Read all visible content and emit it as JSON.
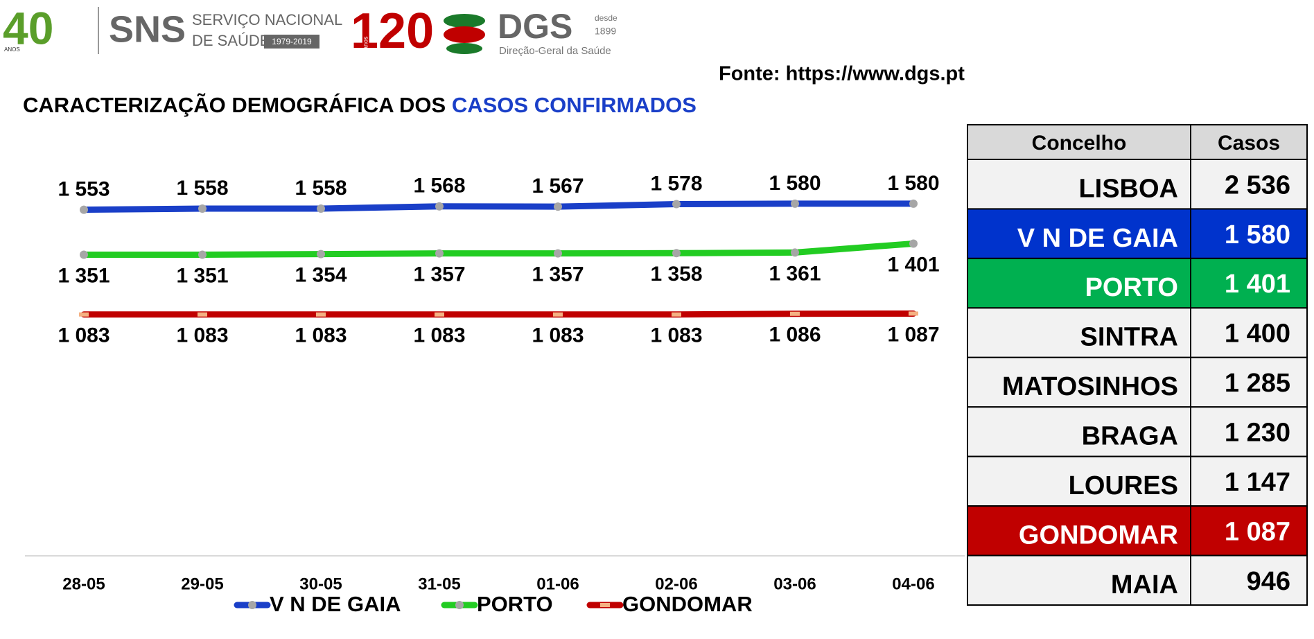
{
  "header": {
    "sns_years": "40",
    "sns_years_unit": "ANOS",
    "sns": "SNS",
    "sns_line1": "SERVIÇO NACIONAL",
    "sns_line2": "DE SAÚDE",
    "sns_period": "1979-2019",
    "dgs_years": "120",
    "dgs_years_unit": "anos",
    "dgs": "DGS",
    "dgs_since": "desde",
    "dgs_year": "1899",
    "dgs_name": "Direção-Geral da Saúde"
  },
  "source": "Fonte: https://www.dgs.pt",
  "chart_data": {
    "type": "line",
    "title": "CARACTERIZAÇÃO DEMOGRÁFICA DOS ",
    "title_highlight": "CASOS CONFIRMADOS",
    "categories": [
      "28-05",
      "29-05",
      "30-05",
      "31-05",
      "01-06",
      "02-06",
      "03-06",
      "04-06"
    ],
    "ylim": [
      0,
      1900
    ],
    "series": [
      {
        "name": "V N DE GAIA",
        "color": "#1a3fc8",
        "marker": "circle",
        "label_position": "above",
        "values": [
          1553,
          1558,
          1558,
          1568,
          1567,
          1578,
          1580,
          1580
        ],
        "value_labels": [
          "1 553",
          "1 558",
          "1 558",
          "1 568",
          "1 567",
          "1 578",
          "1 580",
          "1 580"
        ]
      },
      {
        "name": "PORTO",
        "color": "#22cc22",
        "marker": "circle",
        "label_position": "below",
        "values": [
          1351,
          1351,
          1354,
          1357,
          1357,
          1358,
          1361,
          1401
        ],
        "value_labels": [
          "1 351",
          "1 351",
          "1 354",
          "1 357",
          "1 357",
          "1 358",
          "1 361",
          "1 401"
        ]
      },
      {
        "name": "GONDOMAR",
        "color": "#c00000",
        "marker": "square",
        "label_position": "below",
        "values": [
          1083,
          1083,
          1083,
          1083,
          1083,
          1083,
          1086,
          1087
        ],
        "value_labels": [
          "1 083",
          "1 083",
          "1 083",
          "1 083",
          "1 083",
          "1 083",
          "1 086",
          "1 087"
        ]
      }
    ]
  },
  "table": {
    "header": [
      "Concelho",
      "Casos"
    ],
    "rows": [
      {
        "cells": [
          "LISBOA",
          "2 536"
        ],
        "fill": "#f2f2f2",
        "color": "#000000"
      },
      {
        "cells": [
          "V N DE GAIA",
          "1 580"
        ],
        "fill": "#0033cc",
        "color": "#ffffff"
      },
      {
        "cells": [
          "PORTO",
          "1 401"
        ],
        "fill": "#00b050",
        "color": "#ffffff"
      },
      {
        "cells": [
          "SINTRA",
          "1 400"
        ],
        "fill": "#f2f2f2",
        "color": "#000000"
      },
      {
        "cells": [
          "MATOSINHOS",
          "1 285"
        ],
        "fill": "#f2f2f2",
        "color": "#000000"
      },
      {
        "cells": [
          "BRAGA",
          "1 230"
        ],
        "fill": "#f2f2f2",
        "color": "#000000"
      },
      {
        "cells": [
          "LOURES",
          "1 147"
        ],
        "fill": "#f2f2f2",
        "color": "#000000"
      },
      {
        "cells": [
          "GONDOMAR",
          "1 087"
        ],
        "fill": "#c00000",
        "color": "#ffffff"
      },
      {
        "cells": [
          "MAIA",
          "946"
        ],
        "fill": "#f2f2f2",
        "color": "#000000"
      }
    ]
  }
}
